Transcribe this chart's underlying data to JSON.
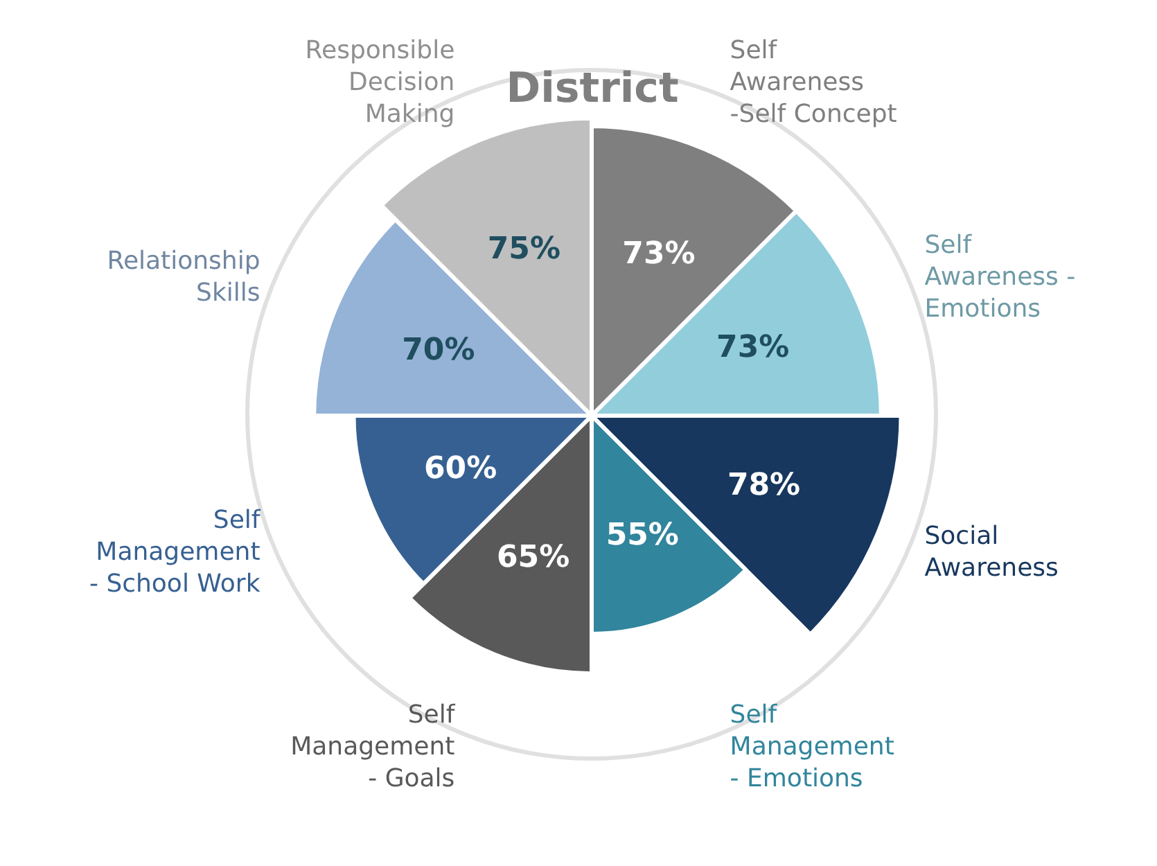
{
  "chart_data": {
    "type": "other",
    "title": "District",
    "categories": [
      "Self Awareness -Self Concept",
      "Self Awareness - Emotions",
      "Social Awareness",
      "Self Management - Emotions",
      "Self Management - Goals",
      "Self Management - School Work",
      "Relationship Skills",
      "Responsible Decision Making"
    ],
    "values": [
      73,
      73,
      78,
      55,
      65,
      60,
      70,
      75
    ],
    "colors": [
      "#7f7f7f",
      "#92cddc",
      "#17375e",
      "#31859c",
      "#595959",
      "#366092",
      "#95b3d7",
      "#bfbfbf"
    ],
    "value_labels": [
      "73%",
      "73%",
      "78%",
      "55%",
      "65%",
      "60%",
      "70%",
      "75%"
    ],
    "legend": false
  }
}
